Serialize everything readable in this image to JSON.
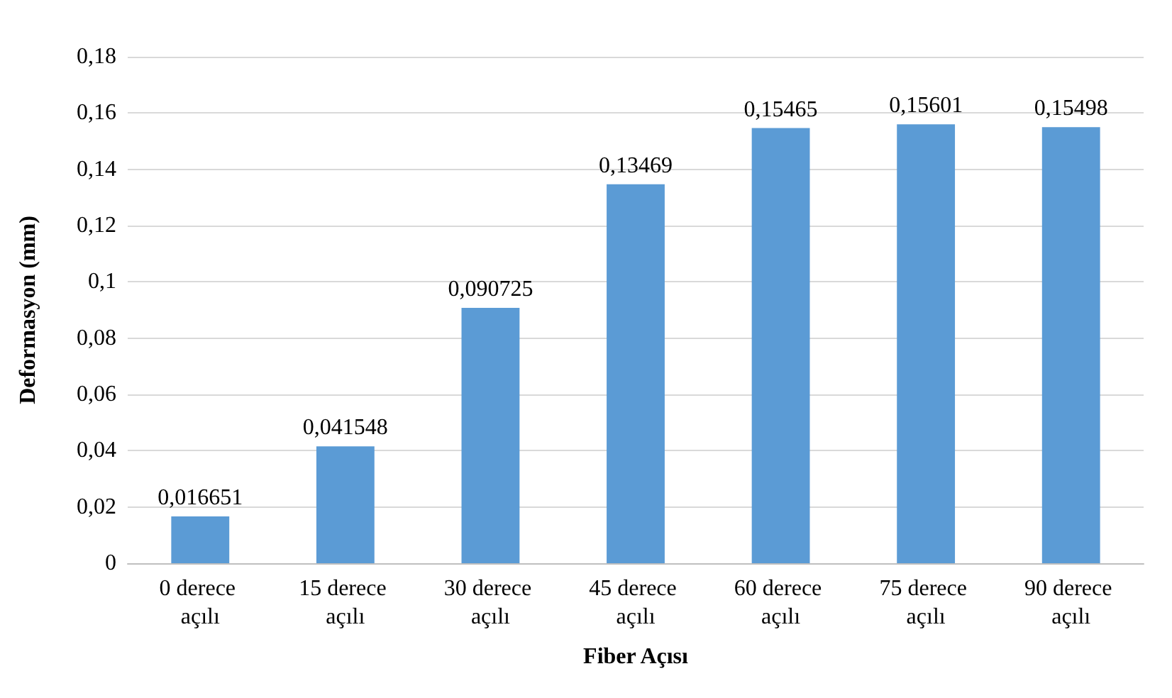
{
  "chart_data": {
    "type": "bar",
    "xlabel": "Fiber Açısı",
    "ylabel": "Deformasyon (mm)",
    "categories": [
      "0 derece açılı",
      "15 derece açılı",
      "30 derece açılı",
      "45 derece açılı",
      "60 derece açılı",
      "75 derece açılı",
      "90 derece açılı"
    ],
    "values": [
      0.016651,
      0.041548,
      0.090725,
      0.13469,
      0.15465,
      0.15601,
      0.15498
    ],
    "value_labels": [
      "0,016651",
      "0,041548",
      "0,090725",
      "0,13469",
      "0,15465",
      "0,15601",
      "0,15498"
    ],
    "color": "#5b9bd5",
    "ylim": [
      0,
      0.18
    ],
    "yticks": [
      {
        "value": 0,
        "label": "0"
      },
      {
        "value": 0.02,
        "label": "0,02"
      },
      {
        "value": 0.04,
        "label": "0,04"
      },
      {
        "value": 0.06,
        "label": "0,06"
      },
      {
        "value": 0.08,
        "label": "0,08"
      },
      {
        "value": 0.1,
        "label": "0,1"
      },
      {
        "value": 0.12,
        "label": "0,12"
      },
      {
        "value": 0.14,
        "label": "0,14"
      },
      {
        "value": 0.16,
        "label": "0,16"
      },
      {
        "value": 0.18,
        "label": "0,18"
      }
    ],
    "grid": "y"
  }
}
